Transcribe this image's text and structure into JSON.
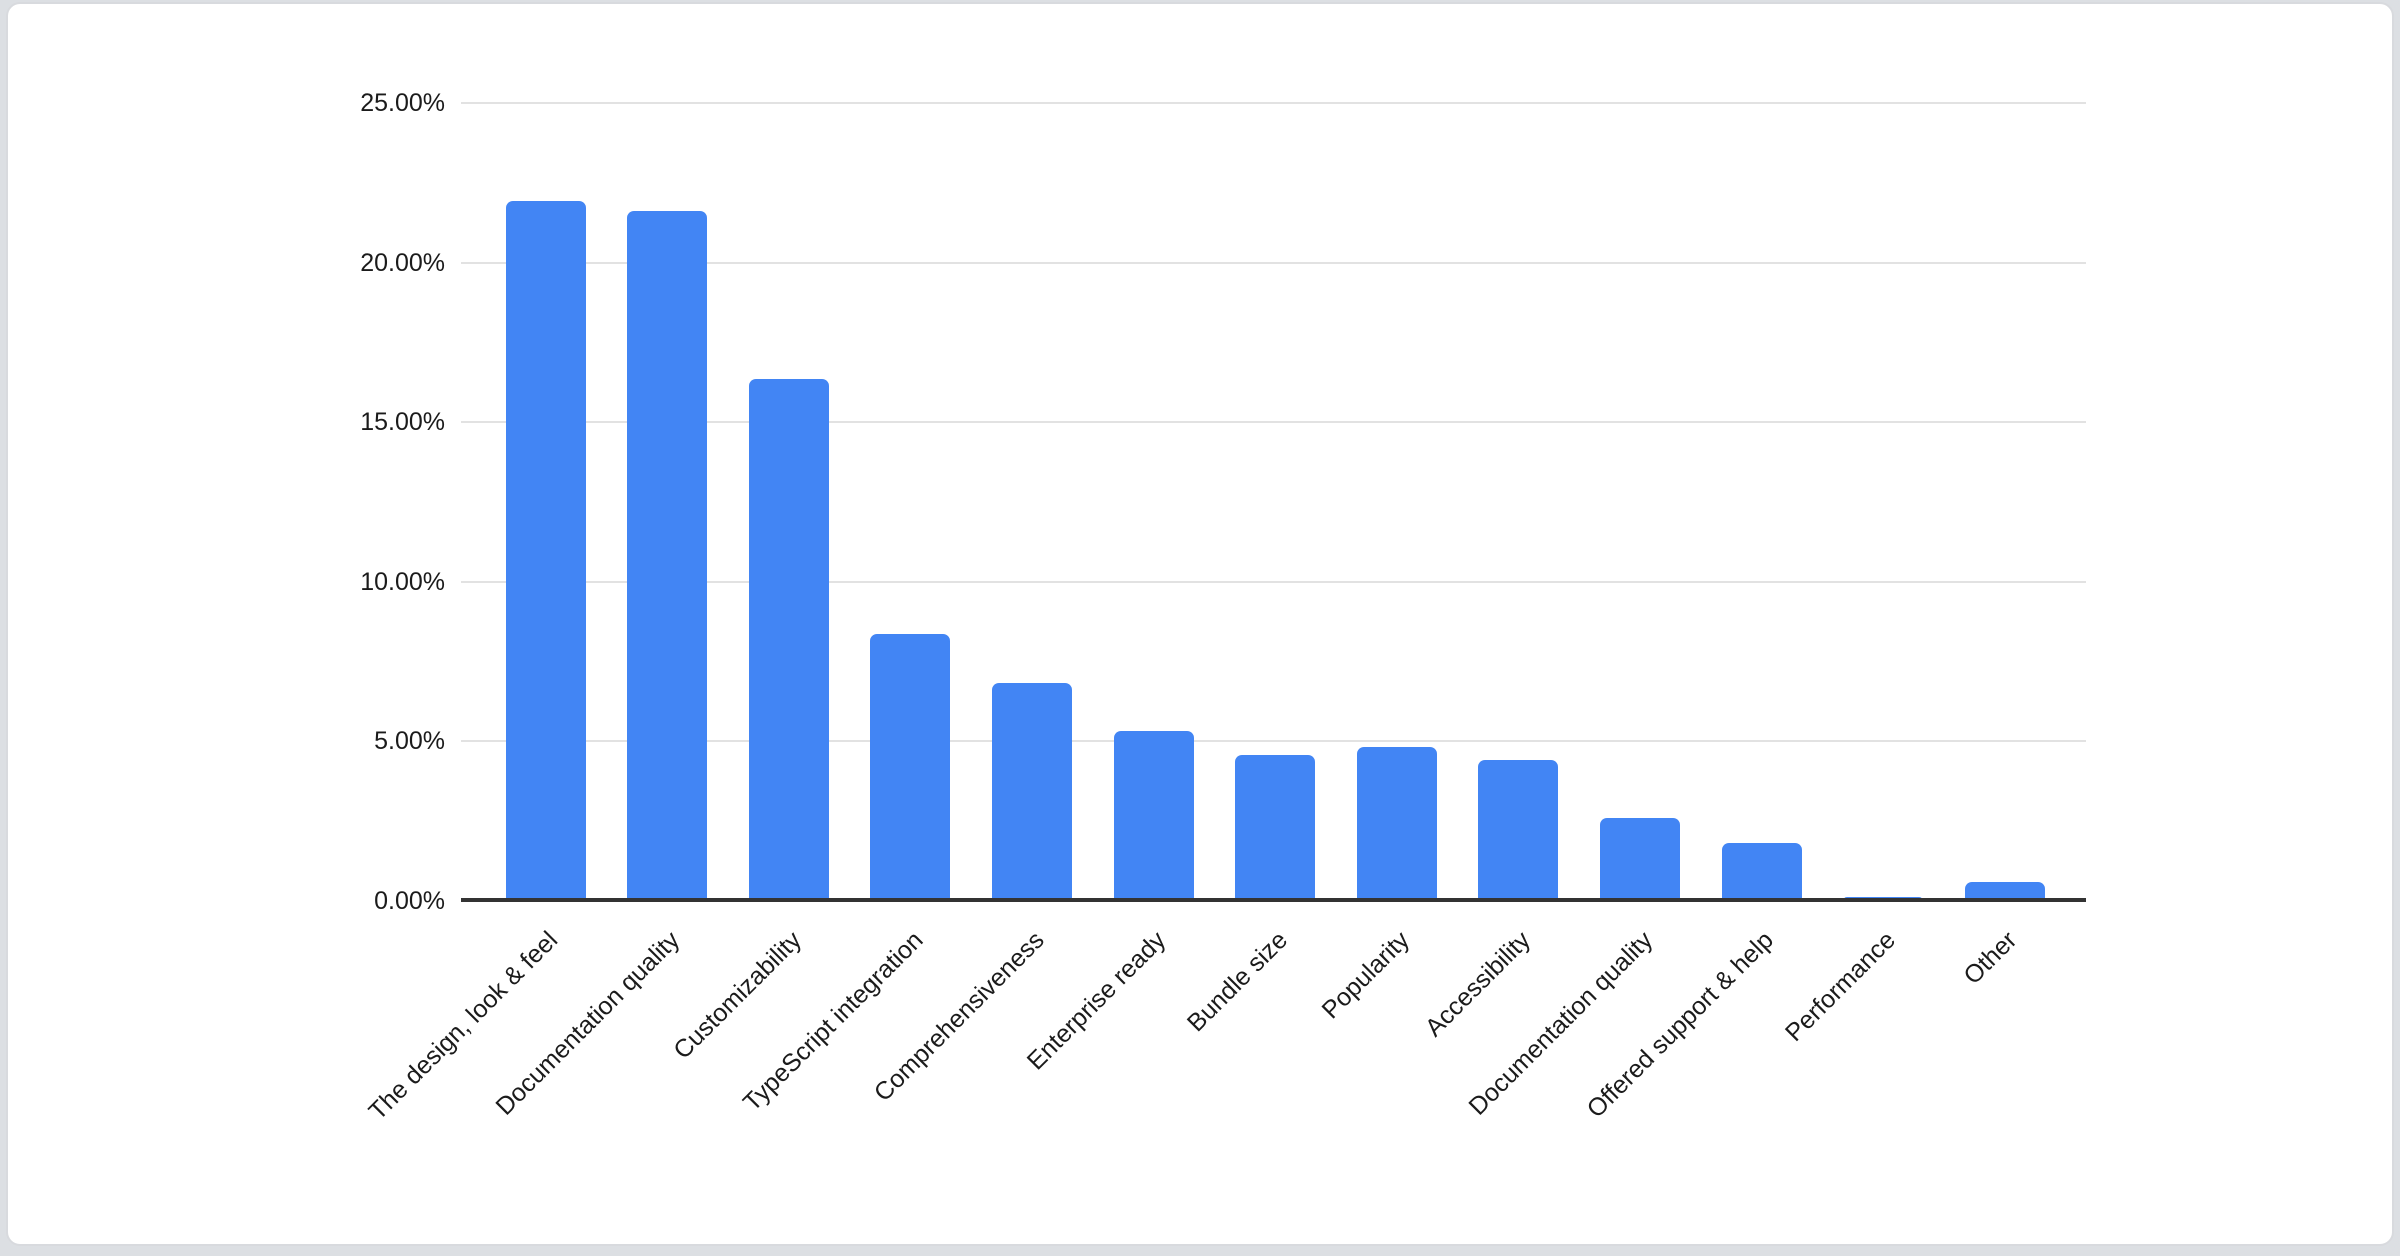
{
  "page": {
    "background_color": "#dcdfe3",
    "card_background": "#ffffff",
    "card_border_color": "#d8dade"
  },
  "chart_data": {
    "type": "bar",
    "title": "",
    "xlabel": "",
    "ylabel": "",
    "categories": [
      "The design, look & feel",
      "Documentation quality",
      "Customizability",
      "TypeScript integration",
      "Comprehensiveness",
      "Enterprise ready",
      "Bundle size",
      "Popularity",
      "Accessibility",
      "Documentation quality",
      "Offered support & help",
      "Performance",
      "Other"
    ],
    "values": [
      21.92,
      21.63,
      16.34,
      8.35,
      6.83,
      5.32,
      4.58,
      4.83,
      4.43,
      2.59,
      1.81,
      0.12,
      0.6
    ],
    "value_unit": "%",
    "ylim": [
      0,
      25
    ],
    "y_tick_labels": [
      "25.00%",
      "20.00%",
      "15.00%",
      "10.00%",
      "5.00%",
      "0.00%"
    ],
    "y_tick_values": [
      25,
      20,
      15,
      10,
      5,
      0
    ],
    "grid": true,
    "legend": "none",
    "bar_color": "#4285f4",
    "gridline_color": "#e2e2e2",
    "axis_line_color": "#333333",
    "label_color": "#1b1b1b"
  }
}
